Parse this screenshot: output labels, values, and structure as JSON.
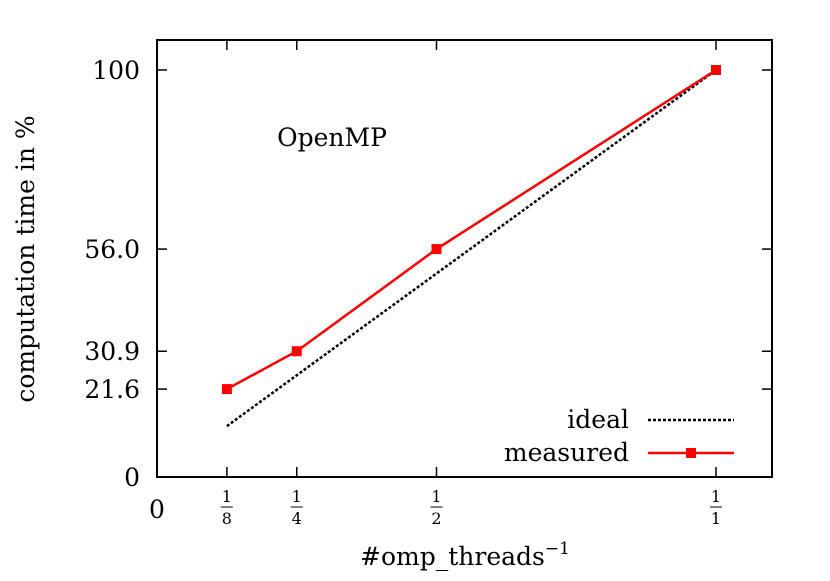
{
  "chart_data": {
    "type": "line",
    "annotation": "OpenMP",
    "xlabel": "#omp_threads",
    "xlabel_superscript": "−1",
    "ylabel": "computation time in %",
    "x_origin_label": "0",
    "xlim": [
      0,
      1.1
    ],
    "ylim": [
      0,
      100
    ],
    "x_ticks": [
      {
        "value": 0.125,
        "numerator": "1",
        "denominator": "8"
      },
      {
        "value": 0.25,
        "numerator": "1",
        "denominator": "4"
      },
      {
        "value": 0.5,
        "numerator": "1",
        "denominator": "2"
      },
      {
        "value": 1.0,
        "numerator": "1",
        "denominator": "1"
      }
    ],
    "y_ticks": [
      {
        "value": 0,
        "label": "0"
      },
      {
        "value": 21.6,
        "label": "21.6"
      },
      {
        "value": 30.9,
        "label": "30.9"
      },
      {
        "value": 56.0,
        "label": "56.0"
      },
      {
        "value": 100,
        "label": "100"
      }
    ],
    "series": [
      {
        "name": "ideal",
        "style": "dashed",
        "color": "#000000",
        "x": [
          0.125,
          1.0
        ],
        "y": [
          12.5,
          100
        ]
      },
      {
        "name": "measured",
        "style": "solid-square-markers",
        "color": "#ff0000",
        "x": [
          0.125,
          0.25,
          0.5,
          1.0
        ],
        "y": [
          21.6,
          30.9,
          56.0,
          100
        ]
      }
    ],
    "legend_position": "bottom-right",
    "grid": false
  }
}
